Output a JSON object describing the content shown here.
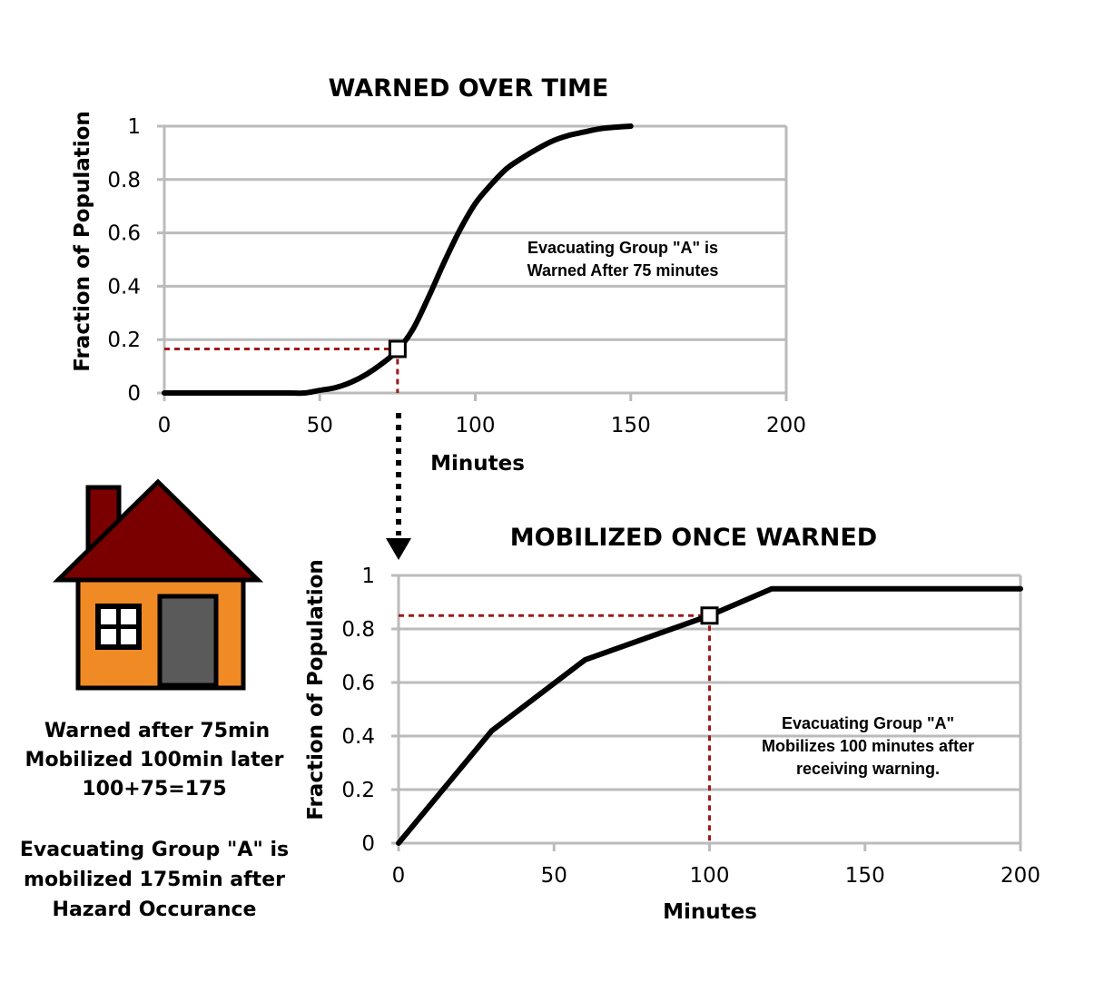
{
  "chart_data": [
    {
      "type": "line",
      "title": "WARNED OVER TIME",
      "xlabel": "Minutes",
      "ylabel": "Fraction of Population",
      "xlim": [
        0,
        200
      ],
      "ylim": [
        0,
        1
      ],
      "xticks": [
        "0",
        "50",
        "100",
        "150",
        "200"
      ],
      "yticks": [
        "0",
        "0.2",
        "0.4",
        "0.6",
        "0.8",
        "1"
      ],
      "grid": "horizontal",
      "series": [
        {
          "x": [
            0,
            10,
            20,
            30,
            40,
            45,
            50,
            55,
            60,
            65,
            70,
            75,
            80,
            85,
            90,
            95,
            100,
            105,
            110,
            115,
            120,
            125,
            130,
            135,
            140,
            145,
            150
          ],
          "y": [
            0,
            0,
            0,
            0,
            0,
            0,
            0.01,
            0.02,
            0.04,
            0.07,
            0.11,
            0.16,
            0.24,
            0.36,
            0.49,
            0.61,
            0.71,
            0.78,
            0.84,
            0.88,
            0.915,
            0.945,
            0.965,
            0.978,
            0.99,
            0.996,
            1.0
          ]
        }
      ],
      "highlight": {
        "x": 75,
        "y": 0.165
      },
      "annotation": [
        "Evacuating Group \"A\" is",
        "Warned After 75 minutes"
      ]
    },
    {
      "type": "line",
      "title": "MOBILIZED ONCE WARNED",
      "xlabel": "Minutes",
      "ylabel": "Fraction of Population",
      "xlim": [
        0,
        200
      ],
      "ylim": [
        0,
        1
      ],
      "xticks": [
        "0",
        "50",
        "100",
        "150",
        "200"
      ],
      "yticks": [
        "0",
        "0.2",
        "0.4",
        "0.6",
        "0.8",
        "1"
      ],
      "grid": "horizontal",
      "series": [
        {
          "x": [
            0,
            30,
            60,
            100,
            120,
            200
          ],
          "y": [
            0,
            0.42,
            0.685,
            0.85,
            0.95,
            0.95
          ]
        }
      ],
      "highlight": {
        "x": 100,
        "y": 0.85
      },
      "annotation": [
        "Evacuating Group \"A\"",
        "Mobilizes 100 minutes after",
        "receiving warning."
      ]
    }
  ],
  "colors": {
    "line": "#000000",
    "grid": "#bbbbbb",
    "guide": "#9b1b1b",
    "roof": "#7a0000",
    "wall": "#f08a24",
    "door": "#5a5a5a"
  },
  "house": {
    "icon": "house-icon"
  },
  "side_text": {
    "line1": "Warned after 75min",
    "line2": "Mobilized 100min later",
    "line3": "100+75=175",
    "line4": "Evacuating Group \"A\" is",
    "line5": "mobilized 175min after",
    "line6": "Hazard Occurance"
  }
}
